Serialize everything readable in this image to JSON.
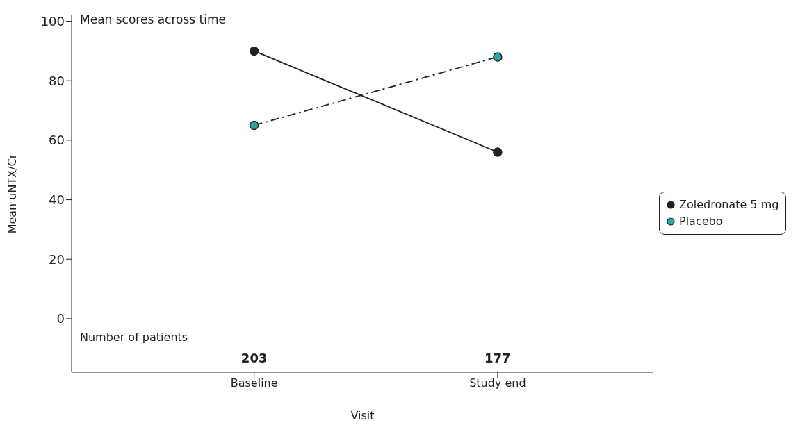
{
  "chart_data": {
    "type": "line",
    "title": "Mean scores across time",
    "xlabel": "Visit",
    "ylabel": "Mean uNTX/Cr",
    "categories": [
      "Baseline",
      "Study end"
    ],
    "series": [
      {
        "name": "Zoledronate 5 mg",
        "color": "#222222",
        "values": [
          90,
          56
        ],
        "line_style": "solid"
      },
      {
        "name": "Placebo",
        "color": "#2aa5aa",
        "values": [
          65,
          88
        ],
        "line_style": "dashed"
      }
    ],
    "ylim": [
      -18,
      102
    ],
    "yticks": [
      0,
      20,
      40,
      60,
      80,
      100
    ],
    "legend": "right",
    "marker": "circle",
    "annotations": [
      "Number of patients",
      "203",
      "177"
    ]
  }
}
